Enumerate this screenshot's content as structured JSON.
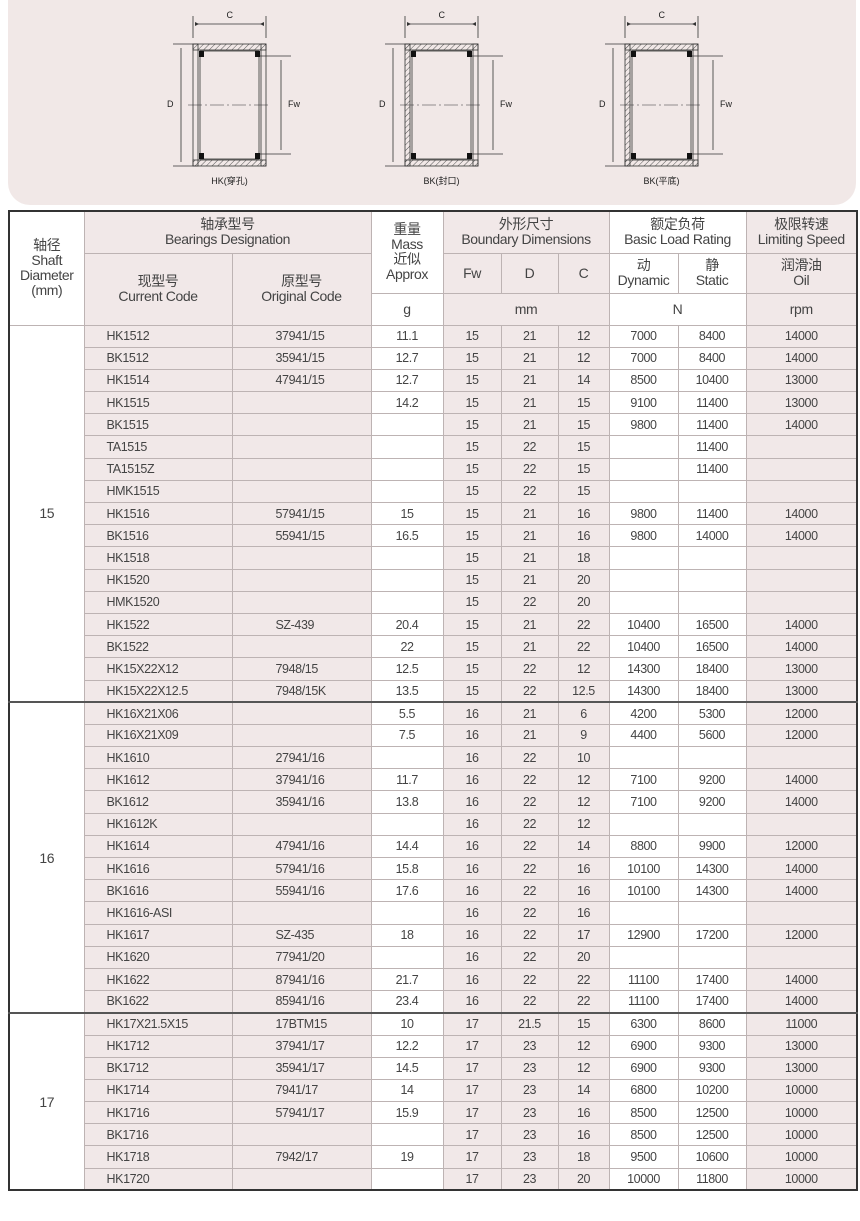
{
  "diagrams": [
    {
      "label": "HK(穿孔)",
      "dim_c": "C",
      "dim_d": "D",
      "dim_fw": "Fw"
    },
    {
      "label": "BK(封口)",
      "dim_c": "C",
      "dim_d": "D",
      "dim_fw": "Fw"
    },
    {
      "label": "BK(平底)",
      "dim_c": "C",
      "dim_d": "D",
      "dim_fw": "Fw"
    }
  ],
  "header": {
    "shaft": [
      "轴径",
      "Shaft",
      "Diameter",
      "(mm)"
    ],
    "designation": [
      "轴承型号",
      "Bearings Designation"
    ],
    "current_code": [
      "现型号",
      "Current Code"
    ],
    "original_code": [
      "原型号",
      "Original Code"
    ],
    "mass": [
      "重量",
      "Mass",
      "近似",
      "Approx"
    ],
    "mass_unit": "g",
    "boundary": [
      "外形尺寸",
      "Boundary Dimensions"
    ],
    "fw": "Fw",
    "d": "D",
    "c": "C",
    "boundary_unit": "mm",
    "load": [
      "额定负荷",
      "Basic Load Rating"
    ],
    "dynamic": [
      "动",
      "Dynamic"
    ],
    "static": [
      "静",
      "Static"
    ],
    "load_unit": "N",
    "speed": [
      "极限转速",
      "Limiting Speed"
    ],
    "oil": [
      "润滑油",
      "Oil"
    ],
    "speed_unit": "rpm"
  },
  "groups": [
    {
      "shaft": "15",
      "rows": [
        [
          "HK1512",
          "37941/15",
          "11.1",
          "15",
          "21",
          "12",
          "7000",
          "8400",
          "14000"
        ],
        [
          "BK1512",
          "35941/15",
          "12.7",
          "15",
          "21",
          "12",
          "7000",
          "8400",
          "14000"
        ],
        [
          "HK1514",
          "47941/15",
          "12.7",
          "15",
          "21",
          "14",
          "8500",
          "10400",
          "13000"
        ],
        [
          "HK1515",
          "",
          "14.2",
          "15",
          "21",
          "15",
          "9100",
          "11400",
          "13000"
        ],
        [
          "BK1515",
          "",
          "",
          "15",
          "21",
          "15",
          "9800",
          "11400",
          "14000"
        ],
        [
          "TA1515",
          "",
          "",
          "15",
          "22",
          "15",
          "",
          "11400",
          ""
        ],
        [
          "TA1515Z",
          "",
          "",
          "15",
          "22",
          "15",
          "",
          "11400",
          ""
        ],
        [
          "HMK1515",
          "",
          "",
          "15",
          "22",
          "15",
          "",
          "",
          ""
        ],
        [
          "HK1516",
          "57941/15",
          "15",
          "15",
          "21",
          "16",
          "9800",
          "11400",
          "14000"
        ],
        [
          "BK1516",
          "55941/15",
          "16.5",
          "15",
          "21",
          "16",
          "9800",
          "14000",
          "14000"
        ],
        [
          "HK1518",
          "",
          "",
          "15",
          "21",
          "18",
          "",
          "",
          ""
        ],
        [
          "HK1520",
          "",
          "",
          "15",
          "21",
          "20",
          "",
          "",
          ""
        ],
        [
          "HMK1520",
          "",
          "",
          "15",
          "22",
          "20",
          "",
          "",
          ""
        ],
        [
          "HK1522",
          "SZ-439",
          "20.4",
          "15",
          "21",
          "22",
          "10400",
          "16500",
          "14000"
        ],
        [
          "BK1522",
          "",
          "22",
          "15",
          "21",
          "22",
          "10400",
          "16500",
          "14000"
        ],
        [
          "HK15X22X12",
          "7948/15",
          "12.5",
          "15",
          "22",
          "12",
          "14300",
          "18400",
          "13000"
        ],
        [
          "HK15X22X12.5",
          "7948/15K",
          "13.5",
          "15",
          "22",
          "12.5",
          "14300",
          "18400",
          "13000"
        ]
      ]
    },
    {
      "shaft": "16",
      "rows": [
        [
          "HK16X21X06",
          "",
          "5.5",
          "16",
          "21",
          "6",
          "4200",
          "5300",
          "12000"
        ],
        [
          "HK16X21X09",
          "",
          "7.5",
          "16",
          "21",
          "9",
          "4400",
          "5600",
          "12000"
        ],
        [
          "HK1610",
          "27941/16",
          "",
          "16",
          "22",
          "10",
          "",
          "",
          ""
        ],
        [
          "HK1612",
          "37941/16",
          "11.7",
          "16",
          "22",
          "12",
          "7100",
          "9200",
          "14000"
        ],
        [
          "BK1612",
          "35941/16",
          "13.8",
          "16",
          "22",
          "12",
          "7100",
          "9200",
          "14000"
        ],
        [
          "HK1612K",
          "",
          "",
          "16",
          "22",
          "12",
          "",
          "",
          ""
        ],
        [
          "HK1614",
          "47941/16",
          "14.4",
          "16",
          "22",
          "14",
          "8800",
          "9900",
          "12000"
        ],
        [
          "HK1616",
          "57941/16",
          "15.8",
          "16",
          "22",
          "16",
          "10100",
          "14300",
          "14000"
        ],
        [
          "BK1616",
          "55941/16",
          "17.6",
          "16",
          "22",
          "16",
          "10100",
          "14300",
          "14000"
        ],
        [
          "HK1616-ASI",
          "",
          "",
          "16",
          "22",
          "16",
          "",
          "",
          ""
        ],
        [
          "HK1617",
          "SZ-435",
          "18",
          "16",
          "22",
          "17",
          "12900",
          "17200",
          "12000"
        ],
        [
          "HK1620",
          "77941/20",
          "",
          "16",
          "22",
          "20",
          "",
          "",
          ""
        ],
        [
          "HK1622",
          "87941/16",
          "21.7",
          "16",
          "22",
          "22",
          "11100",
          "17400",
          "14000"
        ],
        [
          "BK1622",
          "85941/16",
          "23.4",
          "16",
          "22",
          "22",
          "11100",
          "17400",
          "14000"
        ]
      ]
    },
    {
      "shaft": "17",
      "rows": [
        [
          "HK17X21.5X15",
          "17BTM15",
          "10",
          "17",
          "21.5",
          "15",
          "6300",
          "8600",
          "11000"
        ],
        [
          "HK1712",
          "37941/17",
          "12.2",
          "17",
          "23",
          "12",
          "6900",
          "9300",
          "13000"
        ],
        [
          "BK1712",
          "35941/17",
          "14.5",
          "17",
          "23",
          "12",
          "6900",
          "9300",
          "13000"
        ],
        [
          "HK1714",
          "7941/17",
          "14",
          "17",
          "23",
          "14",
          "6800",
          "10200",
          "10000"
        ],
        [
          "HK1716",
          "57941/17",
          "15.9",
          "17",
          "23",
          "16",
          "8500",
          "12500",
          "10000"
        ],
        [
          "BK1716",
          "",
          "",
          "17",
          "23",
          "16",
          "8500",
          "12500",
          "10000"
        ],
        [
          "HK1718",
          "7942/17",
          "19",
          "17",
          "23",
          "18",
          "9500",
          "10600",
          "10000"
        ],
        [
          "HK1720",
          "",
          "",
          "17",
          "23",
          "20",
          "10000",
          "11800",
          "10000"
        ]
      ]
    }
  ]
}
